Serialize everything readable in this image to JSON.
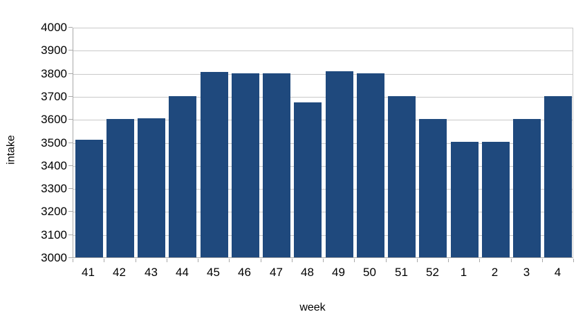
{
  "chart_data": {
    "type": "bar",
    "title": "",
    "xlabel": "week",
    "ylabel": "intake",
    "categories": [
      "41",
      "42",
      "43",
      "44",
      "45",
      "46",
      "47",
      "48",
      "49",
      "50",
      "51",
      "52",
      "1",
      "2",
      "3",
      "4"
    ],
    "values": [
      3510,
      3600,
      3605,
      3700,
      3805,
      3800,
      3800,
      3673,
      3808,
      3800,
      3700,
      3600,
      3500,
      3500,
      3600,
      3700
    ],
    "ylim": [
      3000,
      4000
    ],
    "ytick_step": 100,
    "yticks": [
      "4000",
      "3900",
      "3800",
      "3700",
      "3600",
      "3500",
      "3400",
      "3300",
      "3200",
      "3100",
      "3000"
    ],
    "grid": true,
    "legend": false,
    "colors": {
      "bar": "#1F497D",
      "gridline": "#C9C9C9",
      "axis": "#A8A8A8",
      "text": "#000000",
      "background": "#FFFFFF"
    }
  },
  "layout_note": ""
}
